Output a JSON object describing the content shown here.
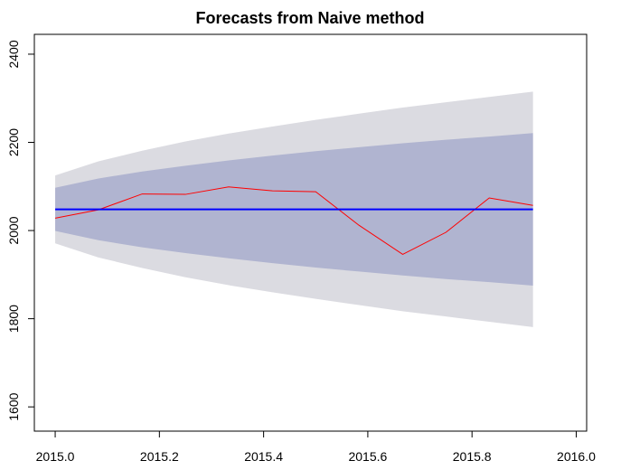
{
  "chart_data": {
    "type": "line",
    "title": "Forecasts from Naive method",
    "xlabel": "",
    "ylabel": "",
    "xlim": [
      2014.96,
      2016.02
    ],
    "ylim": [
      1545,
      2445
    ],
    "x_ticks": [
      2015.0,
      2015.2,
      2015.4,
      2015.6,
      2015.8,
      2016.0
    ],
    "x_tick_labels": [
      "2015.0",
      "2015.2",
      "2015.4",
      "2015.6",
      "2015.8",
      "2016.0"
    ],
    "y_ticks": [
      1600,
      1800,
      2000,
      2200,
      2400
    ],
    "y_tick_labels": [
      "1600",
      "1800",
      "2000",
      "2200",
      "2400"
    ],
    "grid": false,
    "legend": "none",
    "colors": {
      "band_95": "#dbdbe1",
      "band_80": "#b0b4d0",
      "forecast": "#0000ff",
      "actual": "#ff0000",
      "axis": "#000000"
    },
    "series": [
      {
        "x": [
          2015.0,
          2015.083,
          2015.167,
          2015.25,
          2015.333,
          2015.417,
          2015.5,
          2015.583,
          2015.667,
          2015.75,
          2015.833,
          2015.917
        ],
        "values": [
          2028,
          2047,
          2083,
          2082,
          2099,
          2090,
          2088,
          2012,
          1946,
          1996,
          2074,
          2057
        ]
      },
      {
        "x": [
          2015.0,
          2015.917
        ],
        "values": [
          2048,
          2048
        ]
      }
    ],
    "bands": [
      {
        "level": 95,
        "x": [
          2015.0,
          2015.083,
          2015.167,
          2015.25,
          2015.333,
          2015.417,
          2015.5,
          2015.583,
          2015.667,
          2015.75,
          2015.833,
          2015.917
        ],
        "upper": [
          2125,
          2157,
          2181,
          2202,
          2220,
          2236,
          2251,
          2265,
          2279,
          2291,
          2303,
          2315
        ],
        "lower": [
          1971,
          1939,
          1915,
          1894,
          1876,
          1860,
          1845,
          1831,
          1817,
          1805,
          1793,
          1781
        ]
      },
      {
        "level": 80,
        "x": [
          2015.0,
          2015.083,
          2015.167,
          2015.25,
          2015.333,
          2015.417,
          2015.5,
          2015.583,
          2015.667,
          2015.75,
          2015.833,
          2015.917
        ],
        "upper": [
          2097,
          2118,
          2134,
          2147,
          2159,
          2170,
          2180,
          2189,
          2198,
          2206,
          2213,
          2221
        ],
        "lower": [
          1999,
          1978,
          1962,
          1949,
          1937,
          1926,
          1916,
          1907,
          1898,
          1890,
          1883,
          1875
        ]
      }
    ]
  }
}
